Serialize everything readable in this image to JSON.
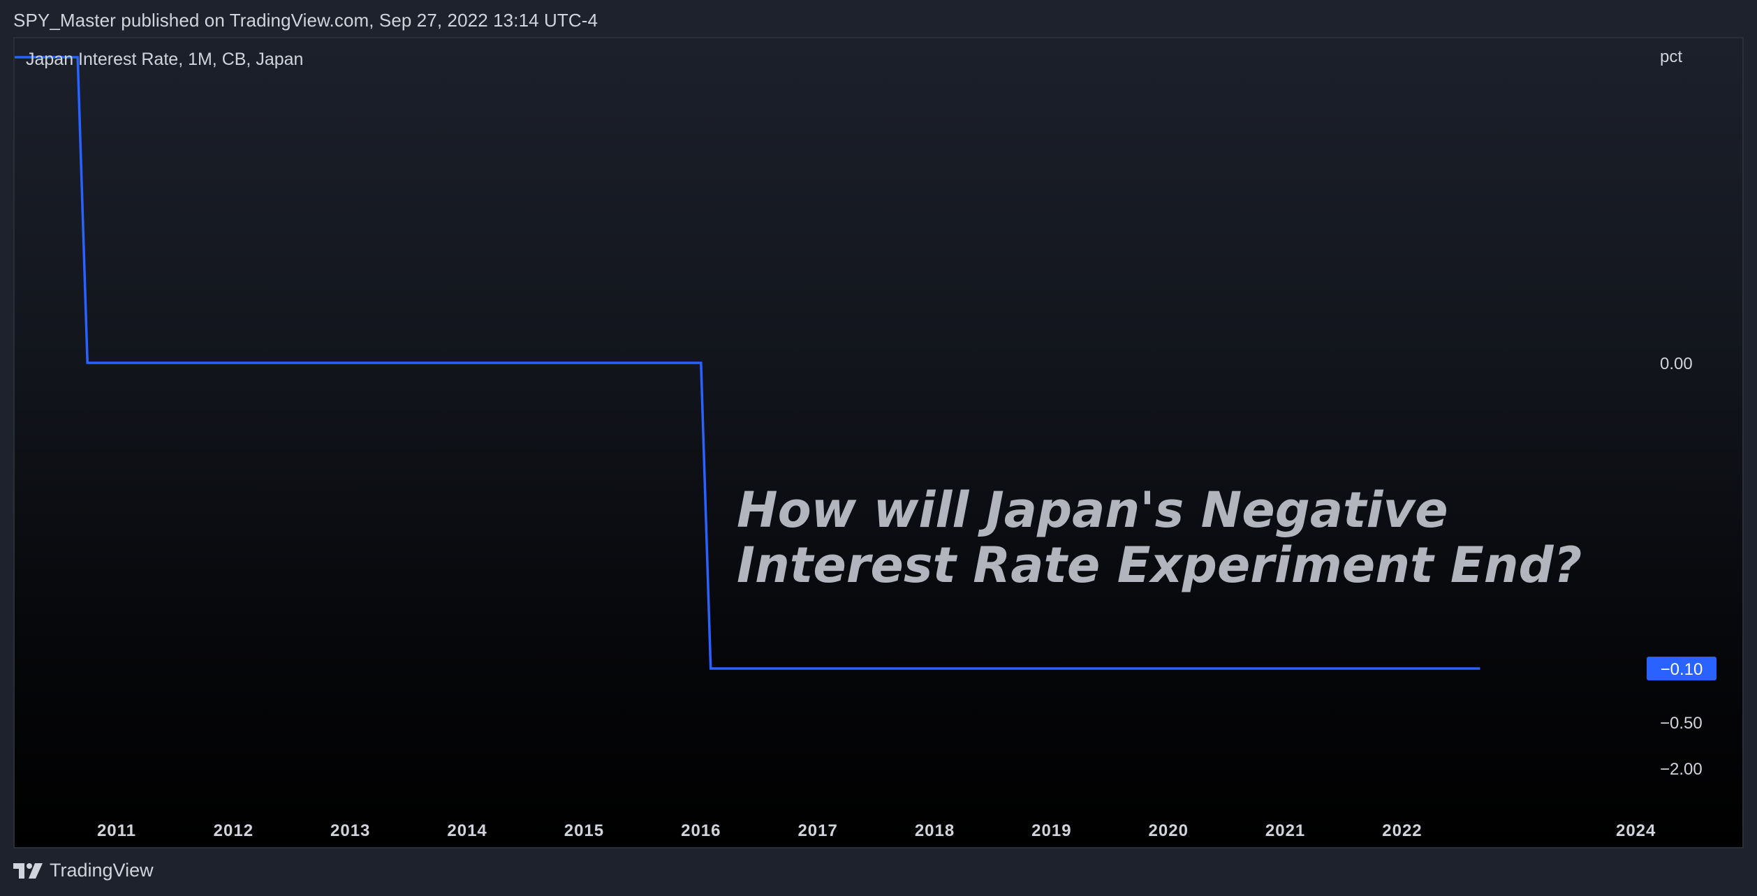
{
  "header": {
    "attribution": "SPY_Master published on TradingView.com, Sep 27, 2022 13:14 UTC-4"
  },
  "footer": {
    "brand": "TradingView",
    "logo_icon": "tradingview-logo-icon"
  },
  "colors": {
    "series_line": "#2962ff",
    "price_tag_bg": "#2962ff",
    "price_tag_text": "#ffffff",
    "axis_text": "#d1d4dc",
    "annotation_text": "#b2b5be"
  },
  "chart_data": {
    "type": "line",
    "step": true,
    "series": [
      {
        "name": "Japan Interest Rate, 1M, CB, Japan",
        "x": [
          "2010-01",
          "2010-09",
          "2010-10",
          "2016-01",
          "2016-02",
          "2022-09"
        ],
        "values": [
          0.1,
          0.1,
          0.0,
          0.0,
          -0.1,
          -0.1
        ]
      }
    ],
    "y_unit": "pct",
    "y_ticks": [
      {
        "label": "0.00",
        "value": 0.0
      },
      {
        "label": "−0.50",
        "value": -0.5
      },
      {
        "label": "−2.00",
        "value": -2.0
      }
    ],
    "last_value_label": "−0.10",
    "x_ticks": [
      "2011",
      "2012",
      "2013",
      "2014",
      "2015",
      "2016",
      "2017",
      "2018",
      "2019",
      "2020",
      "2021",
      "2022",
      "2024"
    ],
    "annotation": [
      "How will Japan's Negative",
      "Interest Rate Experiment End?"
    ],
    "grid": false
  }
}
